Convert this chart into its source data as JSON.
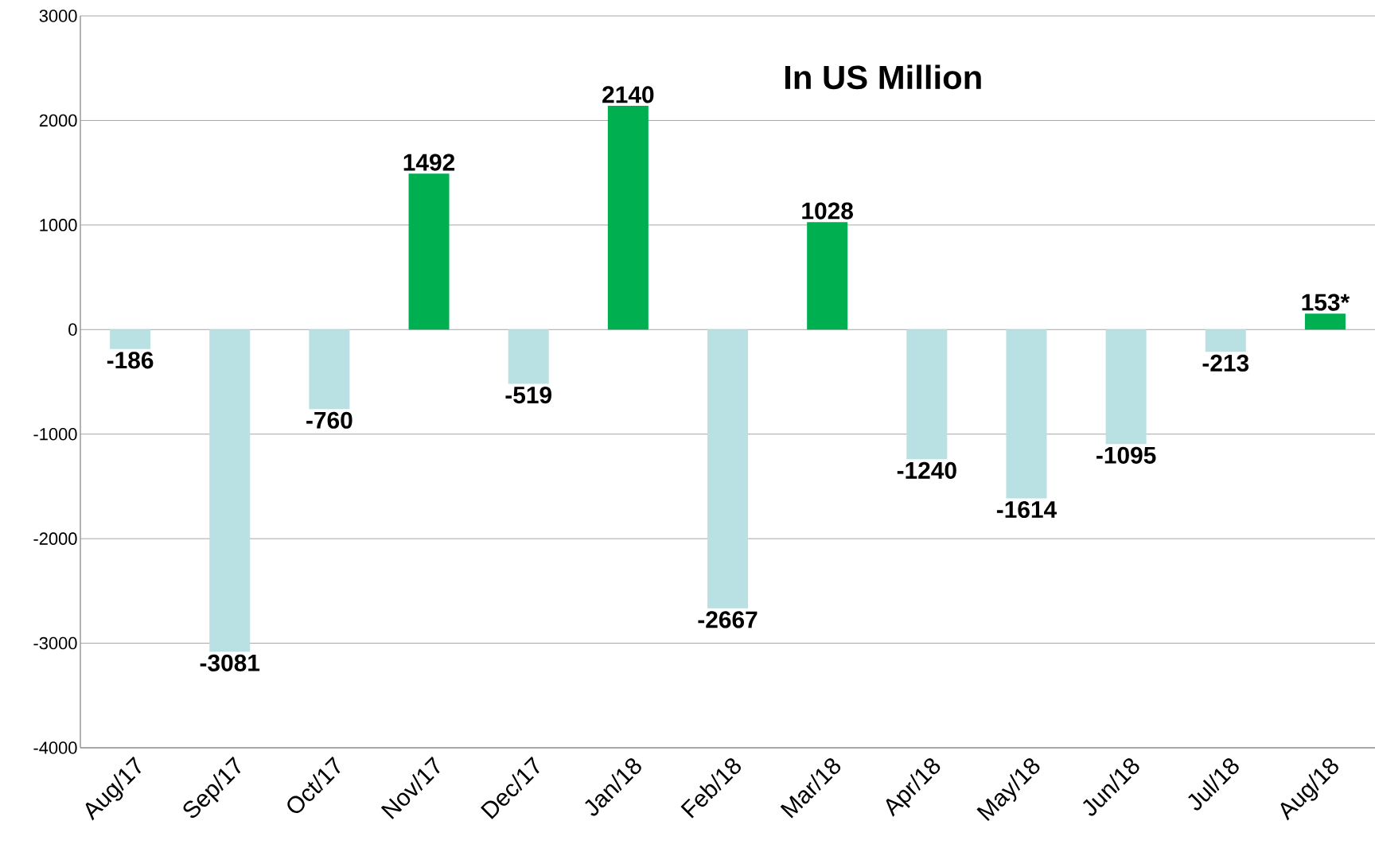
{
  "chart_data": {
    "type": "bar",
    "title": "In US Million",
    "categories": [
      "Aug/17",
      "Sep/17",
      "Oct/17",
      "Nov/17",
      "Dec/17",
      "Jan/18",
      "Feb/18",
      "Mar/18",
      "Apr/18",
      "May/18",
      "Jun/18",
      "Jul/18",
      "Aug/18"
    ],
    "values": [
      -186,
      -3081,
      -760,
      1492,
      -519,
      2140,
      -2667,
      1028,
      -1240,
      -1614,
      -1095,
      -213,
      153
    ],
    "value_labels": [
      "-186",
      "-3081",
      "-760",
      "1492",
      "-519",
      "2140",
      "-2667",
      "1028",
      "-1240",
      "-1614",
      "-1095",
      "-213",
      "153*"
    ],
    "colors": [
      "#b9e0e3",
      "#b9e0e3",
      "#b9e0e3",
      "#00b050",
      "#b9e0e3",
      "#00b050",
      "#b9e0e3",
      "#00b050",
      "#b9e0e3",
      "#b9e0e3",
      "#b9e0e3",
      "#b9e0e3",
      "#00b050"
    ],
    "ylim": [
      -4000,
      3000
    ],
    "yticks": [
      -4000,
      -3000,
      -2000,
      -1000,
      0,
      1000,
      2000,
      3000
    ],
    "grid": "y"
  }
}
